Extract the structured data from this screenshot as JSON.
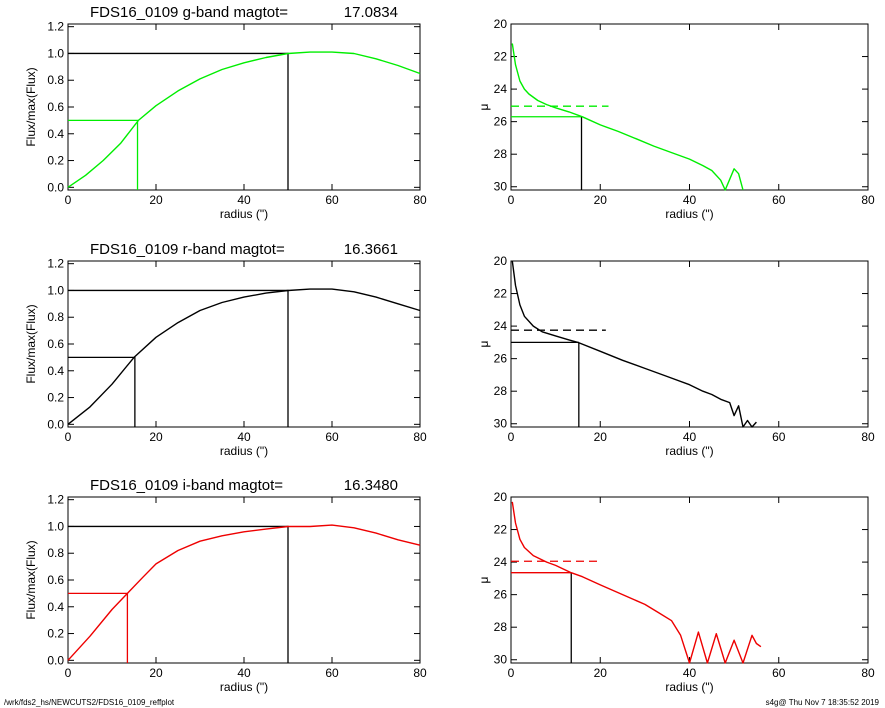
{
  "chart_data": [
    {
      "type": "line",
      "title": "FDS16_0109 g-band  magtot=",
      "title_value": "17.0834",
      "xlabel": "radius (\")",
      "ylabel": "Flux/max(Flux)",
      "xlim": [
        0,
        80
      ],
      "ylim": [
        -0.02,
        1.22
      ],
      "xticks": [
        "0",
        "20",
        "40",
        "60",
        "80"
      ],
      "yticks": [
        "0.0",
        "0.2",
        "0.4",
        "0.6",
        "0.8",
        "1.0",
        "1.2"
      ],
      "color": "#00ee00",
      "x": [
        0,
        4,
        8,
        12,
        16,
        20,
        25,
        30,
        35,
        40,
        45,
        50,
        55,
        60,
        65,
        70,
        75,
        80
      ],
      "y": [
        0.0,
        0.09,
        0.2,
        0.33,
        0.5,
        0.61,
        0.72,
        0.81,
        0.88,
        0.93,
        0.97,
        1.0,
        1.01,
        1.01,
        1.0,
        0.96,
        0.91,
        0.85
      ],
      "half_light_radius": 15.8,
      "total_radius": 50.0
    },
    {
      "type": "line",
      "title": "",
      "xlabel": "radius (\")",
      "ylabel": "μ",
      "xlim": [
        0,
        80
      ],
      "ylim": [
        30.2,
        20.0
      ],
      "xticks": [
        "0",
        "20",
        "40",
        "60",
        "80"
      ],
      "yticks": [
        "20",
        "22",
        "24",
        "26",
        "28",
        "30"
      ],
      "color": "#00ee00",
      "x": [
        0.3,
        1,
        2,
        3,
        4,
        6,
        8,
        10,
        13,
        16,
        20,
        24,
        28,
        32,
        36,
        40,
        43,
        45,
        47,
        48,
        50,
        51,
        52
      ],
      "y": [
        21.2,
        22.5,
        23.5,
        24.0,
        24.3,
        24.7,
        24.95,
        25.15,
        25.4,
        25.7,
        26.2,
        26.6,
        27.05,
        27.5,
        27.9,
        28.3,
        28.7,
        29.0,
        29.6,
        30.2,
        28.9,
        29.2,
        30.2
      ],
      "surface_brightness_at_re": 25.7,
      "mean_surface_brightness_dashed": 25.05,
      "re_radius": 15.8
    },
    {
      "type": "line",
      "title": "FDS16_0109 r-band  magtot=",
      "title_value": "16.3661",
      "xlabel": "radius (\")",
      "ylabel": "Flux/max(Flux)",
      "xlim": [
        0,
        80
      ],
      "ylim": [
        -0.02,
        1.22
      ],
      "xticks": [
        "0",
        "20",
        "40",
        "60",
        "80"
      ],
      "yticks": [
        "0.0",
        "0.2",
        "0.4",
        "0.6",
        "0.8",
        "1.0",
        "1.2"
      ],
      "color": "#000000",
      "x": [
        0,
        5,
        10,
        15,
        20,
        25,
        30,
        35,
        40,
        45,
        50,
        55,
        60,
        65,
        70,
        75,
        80
      ],
      "y": [
        0.0,
        0.13,
        0.3,
        0.5,
        0.65,
        0.76,
        0.85,
        0.91,
        0.95,
        0.98,
        1.0,
        1.01,
        1.01,
        0.99,
        0.95,
        0.9,
        0.85
      ],
      "half_light_radius": 15.2,
      "total_radius": 50.0
    },
    {
      "type": "line",
      "title": "",
      "xlabel": "radius (\")",
      "ylabel": "μ",
      "xlim": [
        0,
        80
      ],
      "ylim": [
        30.2,
        20.0
      ],
      "xticks": [
        "0",
        "20",
        "40",
        "60",
        "80"
      ],
      "yticks": [
        "20",
        "22",
        "24",
        "26",
        "28",
        "30"
      ],
      "color": "#000000",
      "x": [
        0.3,
        1,
        2,
        3,
        5,
        7,
        10,
        13,
        15,
        20,
        25,
        30,
        35,
        40,
        43,
        45,
        47,
        49,
        50,
        51,
        52,
        53,
        54,
        55
      ],
      "y": [
        20.0,
        21.5,
        22.7,
        23.4,
        24.0,
        24.35,
        24.6,
        24.85,
        25.0,
        25.55,
        26.1,
        26.6,
        27.1,
        27.6,
        28.0,
        28.2,
        28.5,
        28.7,
        29.5,
        28.9,
        30.2,
        29.8,
        30.2,
        29.9
      ],
      "surface_brightness_at_re": 25.0,
      "mean_surface_brightness_dashed": 24.25,
      "re_radius": 15.2
    },
    {
      "type": "line",
      "title": "FDS16_0109 i-band  magtot=",
      "title_value": "16.3480",
      "xlabel": "radius (\")",
      "ylabel": "Flux/max(Flux)",
      "xlim": [
        0,
        80
      ],
      "ylim": [
        -0.02,
        1.22
      ],
      "xticks": [
        "0",
        "20",
        "40",
        "60",
        "80"
      ],
      "yticks": [
        "0.0",
        "0.2",
        "0.4",
        "0.6",
        "0.8",
        "1.0",
        "1.2"
      ],
      "color": "#ee0000",
      "x": [
        0,
        5,
        10,
        13.5,
        17,
        20,
        25,
        30,
        35,
        40,
        45,
        50,
        55,
        60,
        65,
        70,
        75,
        80
      ],
      "y": [
        0.0,
        0.18,
        0.38,
        0.5,
        0.62,
        0.72,
        0.82,
        0.89,
        0.93,
        0.96,
        0.98,
        1.0,
        1.0,
        1.01,
        0.99,
        0.95,
        0.9,
        0.86
      ],
      "half_light_radius": 13.5,
      "total_radius": 50.0
    },
    {
      "type": "line",
      "title": "",
      "xlabel": "radius (\")",
      "ylabel": "μ",
      "xlim": [
        0,
        80
      ],
      "ylim": [
        30.2,
        20.0
      ],
      "xticks": [
        "0",
        "20",
        "40",
        "60",
        "80"
      ],
      "yticks": [
        "20",
        "22",
        "24",
        "26",
        "28",
        "30"
      ],
      "color": "#ee0000",
      "x": [
        0.3,
        1,
        2,
        3,
        5,
        8,
        10,
        13.5,
        16,
        20,
        25,
        30,
        33,
        36,
        38,
        40,
        42,
        44,
        46,
        48,
        50,
        52,
        54,
        55,
        56
      ],
      "y": [
        20.3,
        21.6,
        22.6,
        23.1,
        23.6,
        24.0,
        24.2,
        24.65,
        24.9,
        25.4,
        26.0,
        26.6,
        27.1,
        27.6,
        28.5,
        30.2,
        28.3,
        30.2,
        28.4,
        30.2,
        28.8,
        30.2,
        28.5,
        29.0,
        29.2
      ],
      "surface_brightness_at_re": 24.65,
      "mean_surface_brightness_dashed": 23.95,
      "re_radius": 13.5
    }
  ],
  "footer": {
    "path": "/wrk/fds2_hs/NEWCUTS2/FDS16_0109_reffplot",
    "stamp": "s4g@  Thu Nov  7 18:35:52 2019"
  }
}
